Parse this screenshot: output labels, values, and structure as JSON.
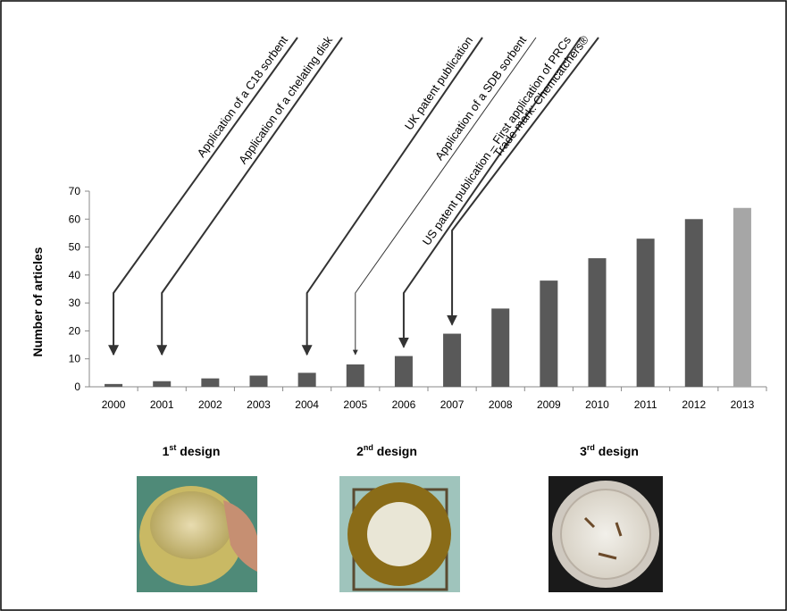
{
  "chart_data": {
    "type": "bar",
    "ylabel": "Number of articles",
    "categories": [
      "2000",
      "2001",
      "2002",
      "2003",
      "2004",
      "2005",
      "2006",
      "2007",
      "2008",
      "2009",
      "2010",
      "2011",
      "2012",
      "2013"
    ],
    "values": [
      1,
      2,
      3,
      4,
      5,
      8,
      11,
      19,
      28,
      38,
      46,
      53,
      60,
      64
    ],
    "colors": [
      "#595959",
      "#595959",
      "#595959",
      "#595959",
      "#595959",
      "#595959",
      "#595959",
      "#595959",
      "#595959",
      "#595959",
      "#595959",
      "#595959",
      "#595959",
      "#a6a6a6"
    ],
    "ylim": [
      0,
      70
    ],
    "yticks": [
      0,
      10,
      20,
      30,
      40,
      50,
      60,
      70
    ],
    "grid": false,
    "annotations": [
      "Application of a C18 sorbent",
      "Application of a chelating disk",
      "UK patent publication",
      "Application of a SDB sorbent",
      "US patent publication – First application of PRCs",
      "Trade mark: Chemcatchers®"
    ]
  },
  "designs": [
    {
      "number": "1",
      "sup": "st",
      "text": "design"
    },
    {
      "number": "2",
      "sup": "nd",
      "text": "design"
    },
    {
      "number": "3",
      "sup": "rd",
      "text": "design"
    }
  ]
}
